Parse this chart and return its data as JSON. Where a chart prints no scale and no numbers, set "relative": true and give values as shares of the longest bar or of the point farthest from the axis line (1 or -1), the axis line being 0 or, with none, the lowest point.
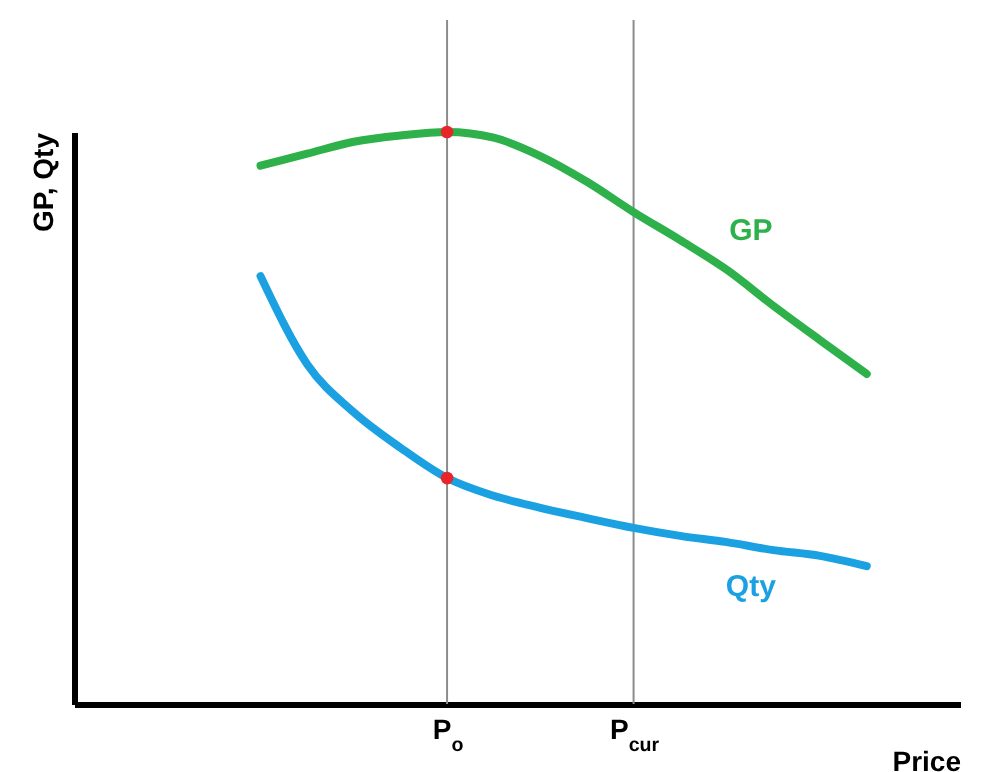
{
  "chart_data": {
    "type": "line",
    "relative": true,
    "xlabel": "Price",
    "ylabel": "GP, Qty",
    "categories": [
      null,
      null,
      null,
      null,
      null,
      null,
      null,
      null,
      "P$_{o}$",
      null,
      null,
      null,
      "P$_{cur}$",
      null,
      null,
      null,
      null,
      null,
      null,
      null
    ],
    "series": [
      {
        "name": "GP",
        "color": "#2eb04a",
        "values": [
          null,
          null,
          null,
          null,
          0.941,
          0.962,
          0.983,
          0.994,
          1,
          0.99,
          0.958,
          0.913,
          0.86,
          0.811,
          0.759,
          0.696,
          0.636,
          0.577,
          null,
          null
        ]
      },
      {
        "name": "Qty",
        "color": "#1ba1e2",
        "values": [
          null,
          null,
          null,
          null,
          0.748,
          0.594,
          0.51,
          0.448,
          0.395,
          0.364,
          0.343,
          0.325,
          0.308,
          0.294,
          0.283,
          0.269,
          0.259,
          0.241,
          null,
          null
        ]
      },
      {
        "type": "scatter",
        "color": "#e8262a",
        "x": [
          "P$_{o}$",
          "P$_{o}$"
        ],
        "values": [
          1,
          0.395
        ]
      }
    ],
    "ref_lines": [
      {
        "axis": "x",
        "value": "P$_{o}$",
        "color": "#8c8c8c"
      },
      {
        "axis": "x",
        "value": "P$_{cur}$",
        "color": "#8c8c8c"
      }
    ],
    "grid": false,
    "legend": false
  }
}
